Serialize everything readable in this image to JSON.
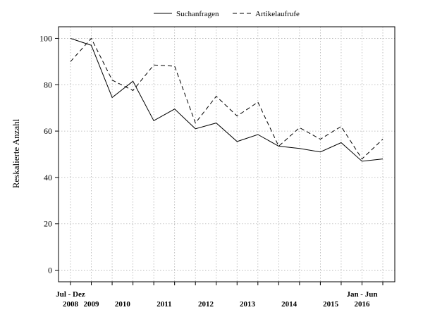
{
  "chart_data": {
    "type": "line",
    "ylabel": "Reskalierte Anzahl",
    "ylim": [
      -5,
      105
    ],
    "yticks": [
      0,
      20,
      40,
      60,
      80,
      100
    ],
    "grid": true,
    "legend_placement": "top-center",
    "x_labels": [
      {
        "x": 0,
        "line1": "Jul - Dez",
        "line2": "2008"
      },
      {
        "x": 1,
        "line1": "",
        "line2": "2009"
      },
      {
        "x": 2.5,
        "line1": "",
        "line2": "2010"
      },
      {
        "x": 4.5,
        "line1": "",
        "line2": "2011"
      },
      {
        "x": 6.5,
        "line1": "",
        "line2": "2012"
      },
      {
        "x": 8.5,
        "line1": "",
        "line2": "2013"
      },
      {
        "x": 10.5,
        "line1": "",
        "line2": "2014"
      },
      {
        "x": 12.5,
        "line1": "",
        "line2": "2015"
      },
      {
        "x": 14,
        "line1": "Jan - Jun",
        "line2": "2016"
      }
    ],
    "x": [
      0,
      1,
      2,
      3,
      4,
      5,
      6,
      7,
      8,
      9,
      10,
      11,
      12,
      13,
      14,
      15
    ],
    "series": [
      {
        "name": "Suchanfragen",
        "style": "solid",
        "values": [
          100,
          97,
          74.5,
          81.5,
          64.5,
          69.5,
          61,
          63.5,
          55.5,
          58.5,
          53.5,
          52.5,
          51,
          55,
          47,
          48
        ]
      },
      {
        "name": "Artikelaufrufe",
        "style": "dashed",
        "values": [
          90,
          100,
          82,
          77.5,
          88.5,
          88,
          63.5,
          75,
          66.5,
          72.5,
          53.5,
          61.5,
          56.5,
          62,
          48,
          56.5
        ]
      }
    ]
  }
}
